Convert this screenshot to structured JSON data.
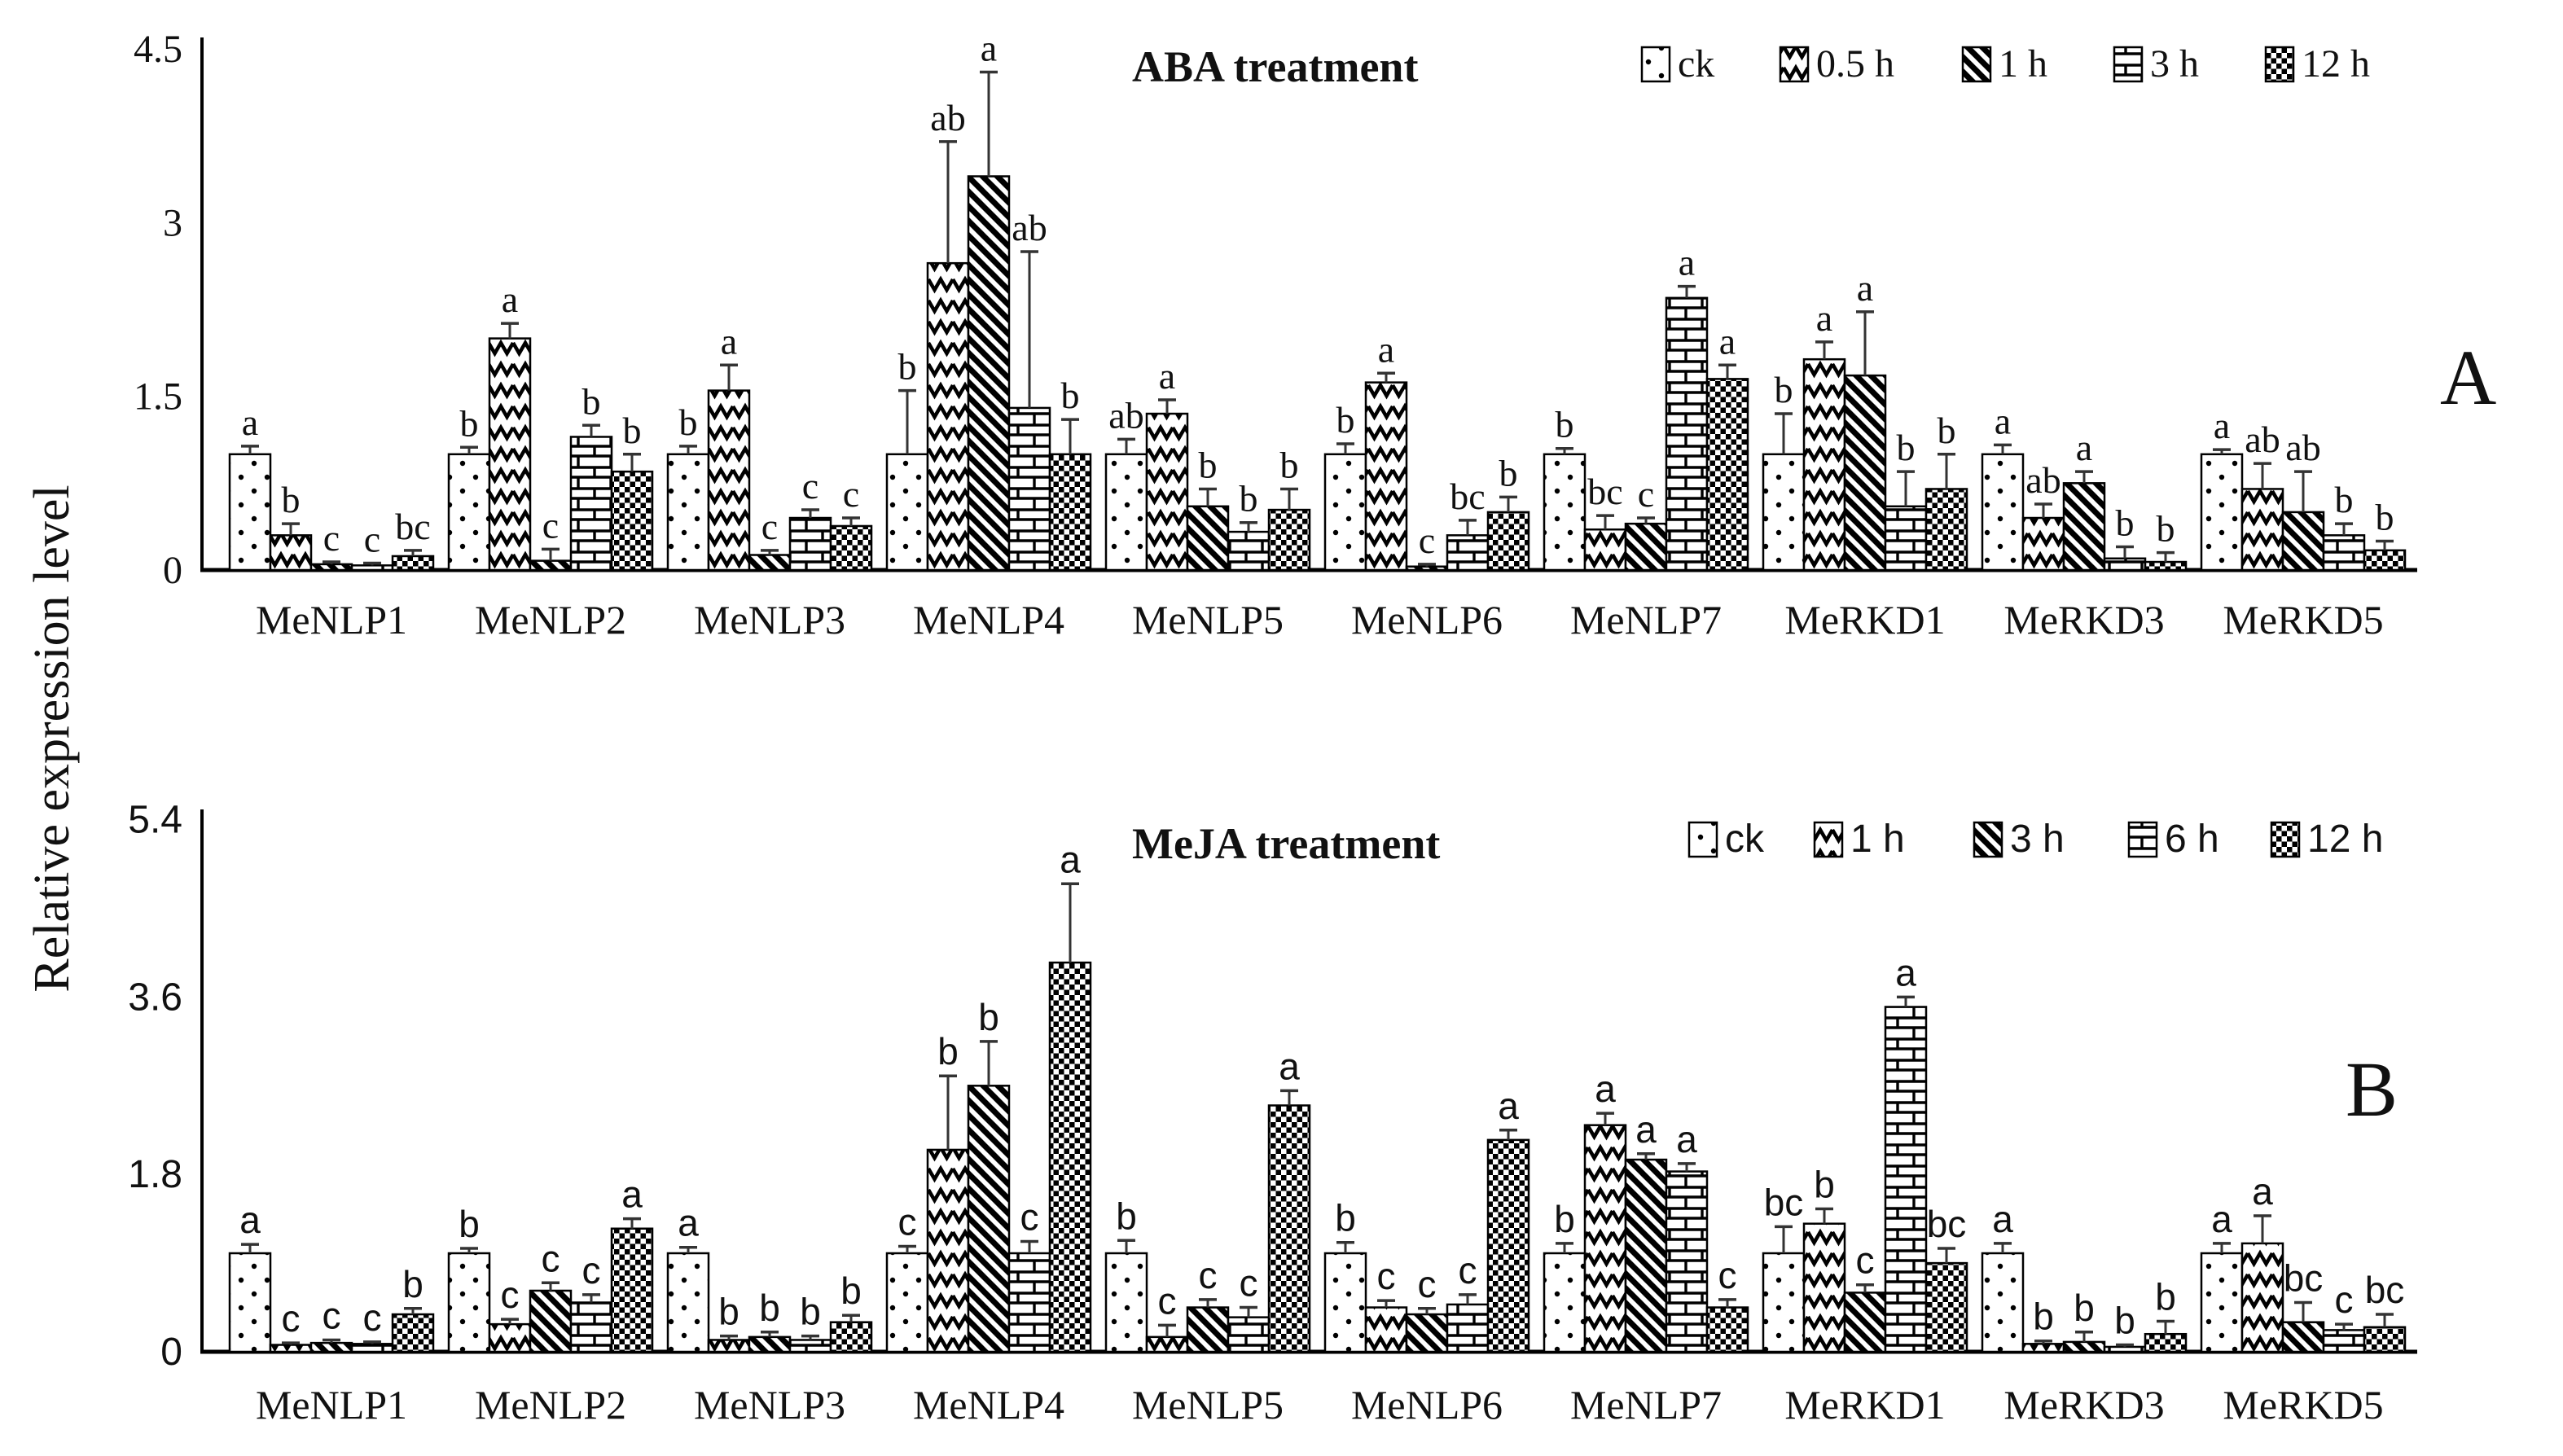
{
  "figure": {
    "ylabel": "Relative expression level",
    "colors": {
      "bar_fill": "#ffffff",
      "bar_stroke": "#000000",
      "whisker": "#333333",
      "text": "#111111"
    }
  },
  "chart_data": [
    {
      "type": "bar",
      "panel_letter": "A",
      "title": "ABA treatment",
      "xlabel": "",
      "ylabel": "Relative expression level",
      "ylim": [
        0,
        4.5
      ],
      "yticks": [
        0,
        1.5,
        3,
        4.5
      ],
      "ytick_labels": [
        "0",
        "1.5",
        "3",
        "4.5"
      ],
      "grid": false,
      "legend_position": "top-right",
      "categories": [
        "MeNLP1",
        "MeNLP2",
        "MeNLP3",
        "MeNLP4",
        "MeNLP5",
        "MeNLP6",
        "MeNLP7",
        "MeRKD1",
        "MeRKD3",
        "MeRKD5"
      ],
      "series": [
        {
          "name": "ck",
          "pattern": "dots",
          "values": [
            1.0,
            1.0,
            1.0,
            1.0,
            1.0,
            1.0,
            1.0,
            1.0,
            1.0,
            1.0
          ],
          "errors": [
            0.07,
            0.06,
            0.07,
            0.55,
            0.13,
            0.09,
            0.05,
            0.35,
            0.08,
            0.04
          ],
          "letters": [
            "a",
            "b",
            "b",
            "b",
            "ab",
            "b",
            "b",
            "b",
            "a",
            "a"
          ]
        },
        {
          "name": "0.5 h",
          "pattern": "chevron",
          "values": [
            0.3,
            2.0,
            1.55,
            2.65,
            1.35,
            1.62,
            0.35,
            1.82,
            0.45,
            0.7
          ],
          "errors": [
            0.1,
            0.13,
            0.22,
            1.05,
            0.12,
            0.08,
            0.12,
            0.15,
            0.12,
            0.22
          ],
          "letters": [
            "b",
            "a",
            "a",
            "ab",
            "a",
            "a",
            "bc",
            "a",
            "ab",
            "ab"
          ]
        },
        {
          "name": "1 h",
          "pattern": "diagonal",
          "values": [
            0.05,
            0.08,
            0.13,
            3.4,
            0.55,
            0.03,
            0.4,
            1.68,
            0.75,
            0.5
          ],
          "errors": [
            0.02,
            0.1,
            0.04,
            0.9,
            0.15,
            0.02,
            0.05,
            0.55,
            0.1,
            0.35
          ],
          "letters": [
            "c",
            "c",
            "c",
            "a",
            "b",
            "c",
            "c",
            "a",
            "a",
            "ab"
          ]
        },
        {
          "name": "3 h",
          "pattern": "brick",
          "values": [
            0.04,
            1.15,
            0.45,
            1.4,
            0.33,
            0.3,
            2.35,
            0.55,
            0.1,
            0.3
          ],
          "errors": [
            0.02,
            0.1,
            0.07,
            1.35,
            0.08,
            0.13,
            0.1,
            0.3,
            0.1,
            0.1
          ],
          "letters": [
            "c",
            "b",
            "c",
            "ab",
            "b",
            "bc",
            "a",
            "b",
            "b",
            "b"
          ]
        },
        {
          "name": "12 h",
          "pattern": "checker",
          "values": [
            0.12,
            0.85,
            0.38,
            1.0,
            0.52,
            0.5,
            1.65,
            0.7,
            0.07,
            0.17
          ],
          "errors": [
            0.05,
            0.15,
            0.07,
            0.3,
            0.18,
            0.13,
            0.12,
            0.3,
            0.08,
            0.08
          ],
          "letters": [
            "bc",
            "b",
            "c",
            "b",
            "b",
            "b",
            "a",
            "b",
            "b",
            "b"
          ]
        }
      ]
    },
    {
      "type": "bar",
      "panel_letter": "B",
      "title": "MeJA treatment",
      "xlabel": "",
      "ylabel": "Relative expression level",
      "ylim": [
        0,
        5.4
      ],
      "yticks": [
        0,
        1.8,
        3.6,
        5.4
      ],
      "ytick_labels": [
        "0",
        "1.8",
        "3.6",
        "5.4"
      ],
      "grid": false,
      "legend_position": "top-right",
      "categories": [
        "MeNLP1",
        "MeNLP2",
        "MeNLP3",
        "MeNLP4",
        "MeNLP5",
        "MeNLP6",
        "MeNLP7",
        "MeRKD1",
        "MeRKD3",
        "MeRKD5"
      ],
      "series": [
        {
          "name": "ck",
          "pattern": "dots",
          "values": [
            1.0,
            1.0,
            1.0,
            1.0,
            1.0,
            1.0,
            1.0,
            1.0,
            1.0,
            1.0
          ],
          "errors": [
            0.09,
            0.05,
            0.06,
            0.07,
            0.13,
            0.11,
            0.1,
            0.27,
            0.1,
            0.1
          ],
          "letters": [
            "a",
            "b",
            "a",
            "c",
            "b",
            "b",
            "b",
            "bc",
            "a",
            "a"
          ]
        },
        {
          "name": "1 h",
          "pattern": "chevron",
          "values": [
            0.07,
            0.28,
            0.12,
            2.05,
            0.15,
            0.45,
            2.3,
            1.3,
            0.08,
            1.1
          ],
          "errors": [
            0.02,
            0.05,
            0.04,
            0.75,
            0.12,
            0.07,
            0.12,
            0.15,
            0.03,
            0.28
          ],
          "letters": [
            "c",
            "c",
            "b",
            "b",
            "c",
            "c",
            "a",
            "b",
            "b",
            "a"
          ]
        },
        {
          "name": "3 h",
          "pattern": "diagonal",
          "values": [
            0.09,
            0.62,
            0.15,
            2.7,
            0.45,
            0.38,
            1.95,
            0.6,
            0.1,
            0.3
          ],
          "errors": [
            0.03,
            0.08,
            0.05,
            0.45,
            0.08,
            0.06,
            0.06,
            0.08,
            0.1,
            0.2
          ],
          "letters": [
            "c",
            "c",
            "b",
            "b",
            "c",
            "c",
            "a",
            "c",
            "b",
            "bc"
          ]
        },
        {
          "name": "6 h",
          "pattern": "brick",
          "values": [
            0.08,
            0.5,
            0.12,
            1.0,
            0.35,
            0.48,
            1.83,
            3.5,
            0.05,
            0.22
          ],
          "errors": [
            0.02,
            0.08,
            0.04,
            0.12,
            0.1,
            0.1,
            0.08,
            0.1,
            0.02,
            0.06
          ],
          "letters": [
            "c",
            "c",
            "b",
            "c",
            "c",
            "c",
            "a",
            "a",
            "b",
            "c"
          ]
        },
        {
          "name": "12 h",
          "pattern": "checker",
          "values": [
            0.38,
            1.25,
            0.3,
            3.95,
            2.5,
            2.15,
            0.45,
            0.9,
            0.18,
            0.25
          ],
          "errors": [
            0.06,
            0.1,
            0.07,
            0.8,
            0.15,
            0.1,
            0.08,
            0.15,
            0.13,
            0.13
          ],
          "letters": [
            "b",
            "a",
            "b",
            "a",
            "a",
            "a",
            "c",
            "bc",
            "b",
            "bc"
          ]
        }
      ]
    }
  ]
}
